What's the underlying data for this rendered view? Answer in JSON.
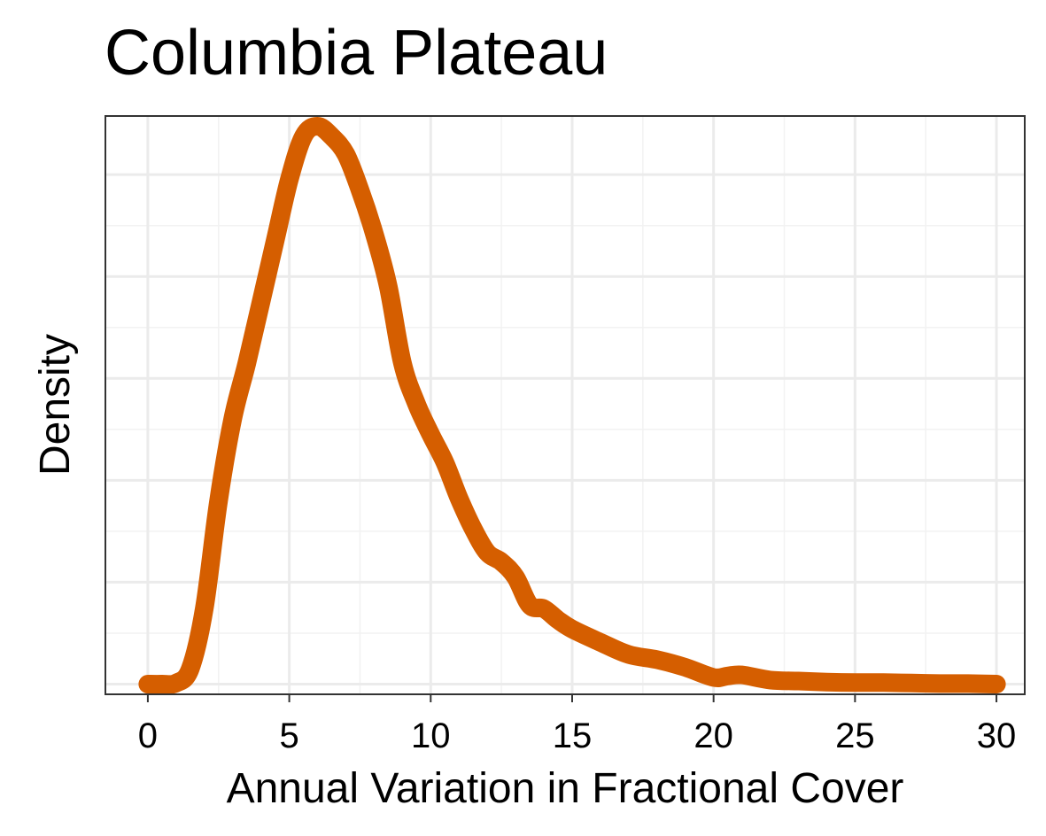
{
  "chart_data": {
    "type": "line",
    "title": "Columbia Plateau",
    "xlabel": "Annual Variation in Fractional Cover",
    "ylabel": "Density",
    "xlim": [
      -1.5,
      31
    ],
    "ylim": [
      -0.002,
      0.1115
    ],
    "x_ticks": [
      0,
      5,
      10,
      15,
      20,
      25,
      30
    ],
    "x_tick_labels": [
      "0",
      "5",
      "10",
      "15",
      "20",
      "25",
      "30"
    ],
    "y_gridlines": [
      0,
      0.02,
      0.04,
      0.06,
      0.08,
      0.1
    ],
    "y_tick_labels_shown": false,
    "grid": true,
    "series": [
      {
        "color": "#D55E00",
        "x": [
          0,
          0.5,
          1,
          1.5,
          2,
          2.5,
          3,
          3.5,
          4,
          4.5,
          5,
          5.5,
          6,
          6.5,
          7,
          7.5,
          8,
          8.5,
          9,
          9.5,
          10,
          10.5,
          11,
          11.5,
          12,
          12.5,
          13,
          13.5,
          14,
          14.5,
          15,
          16,
          17,
          18,
          19,
          20,
          20.5,
          21,
          22,
          23,
          24,
          25,
          26,
          27,
          28,
          29,
          30
        ],
        "y": [
          0.0,
          0.0,
          0.0002,
          0.003,
          0.015,
          0.036,
          0.052,
          0.063,
          0.075,
          0.087,
          0.099,
          0.1075,
          0.1095,
          0.1075,
          0.104,
          0.097,
          0.0885,
          0.078,
          0.063,
          0.055,
          0.049,
          0.0435,
          0.0365,
          0.0305,
          0.0258,
          0.024,
          0.021,
          0.0155,
          0.0148,
          0.0126,
          0.0108,
          0.0082,
          0.0058,
          0.0048,
          0.0033,
          0.0013,
          0.0016,
          0.0018,
          0.0008,
          0.0006,
          0.0004,
          0.0003,
          0.0003,
          0.0002,
          0.0001,
          0.0001,
          0.0
        ]
      }
    ]
  }
}
